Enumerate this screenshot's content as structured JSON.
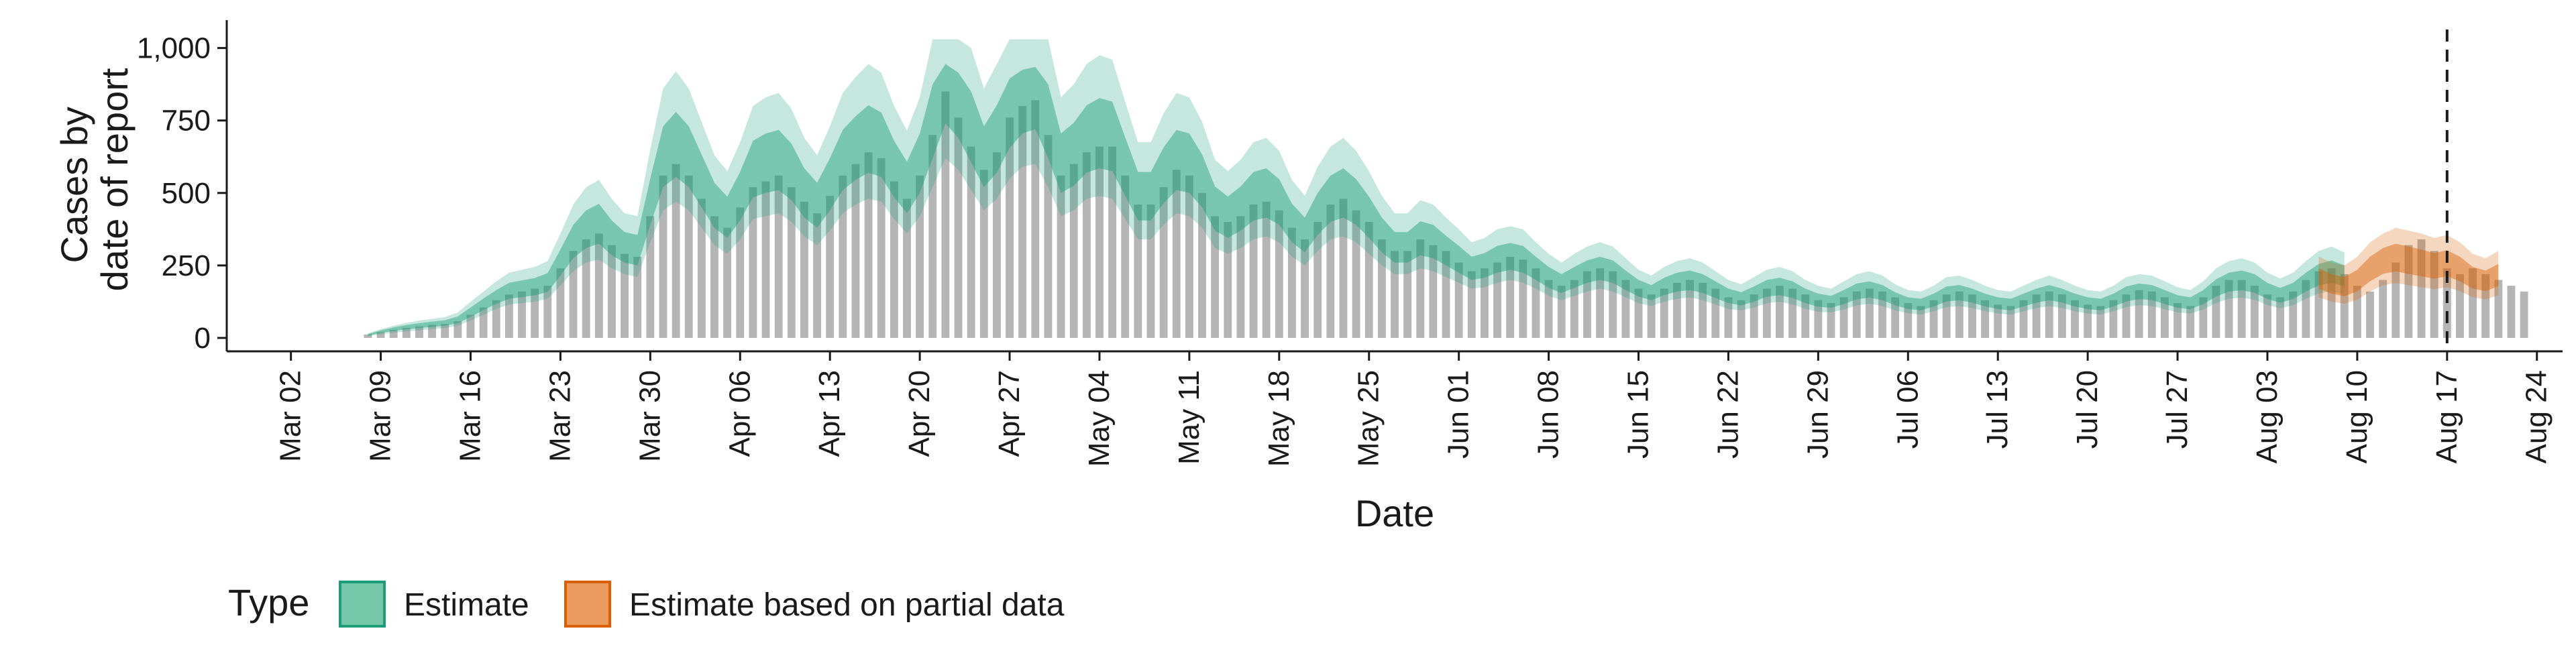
{
  "chart_data": {
    "type": "bar",
    "title": "",
    "xlabel": "Date",
    "ylabel_lines": [
      "Cases by",
      "date of report"
    ],
    "ylim": [
      0,
      1050
    ],
    "yticks": [
      0,
      250,
      500,
      750,
      1000
    ],
    "ytick_labels": [
      "0",
      "250",
      "500",
      "750",
      "1,000"
    ],
    "x_range": [
      "2020-02-26",
      "2020-08-26"
    ],
    "xticks": [
      "2020-03-02",
      "2020-03-09",
      "2020-03-16",
      "2020-03-23",
      "2020-03-30",
      "2020-04-06",
      "2020-04-13",
      "2020-04-20",
      "2020-04-27",
      "2020-05-04",
      "2020-05-11",
      "2020-05-18",
      "2020-05-25",
      "2020-06-01",
      "2020-06-08",
      "2020-06-15",
      "2020-06-22",
      "2020-06-29",
      "2020-07-06",
      "2020-07-13",
      "2020-07-20",
      "2020-07-27",
      "2020-08-03",
      "2020-08-10",
      "2020-08-17",
      "2020-08-24"
    ],
    "xtick_labels": [
      "Mar 02",
      "Mar 09",
      "Mar 16",
      "Mar 23",
      "Mar 30",
      "Apr 06",
      "Apr 13",
      "Apr 20",
      "Apr 27",
      "May 04",
      "May 11",
      "May 18",
      "May 25",
      "Jun 01",
      "Jun 08",
      "Jun 15",
      "Jun 22",
      "Jun 29",
      "Jul 06",
      "Jul 13",
      "Jul 20",
      "Jul 27",
      "Aug 03",
      "Aug 10",
      "Aug 17",
      "Aug 24"
    ],
    "vline_date": "2020-08-17",
    "grid": false,
    "legend": {
      "position": "bottom",
      "title": "Type",
      "entries": [
        {
          "label": "Estimate",
          "fill": "#74c7a8",
          "stroke": "#1b9e77"
        },
        {
          "label": "Estimate based on partial data",
          "fill": "#eb9b5e",
          "stroke": "#d95f02"
        }
      ]
    },
    "colors": {
      "bars": "#b5b5b5",
      "estimate_band": "#1b9e77",
      "partial_band": "#d95f02",
      "vline": "#1a1a1a"
    },
    "reported_cases": {
      "start_date": "2020-03-08",
      "values": [
        12,
        20,
        28,
        35,
        40,
        45,
        48,
        58,
        80,
        105,
        130,
        150,
        160,
        170,
        180,
        240,
        300,
        340,
        360,
        320,
        290,
        280,
        420,
        560,
        600,
        560,
        480,
        420,
        380,
        450,
        520,
        540,
        560,
        520,
        470,
        430,
        490,
        560,
        600,
        640,
        620,
        540,
        480,
        560,
        700,
        850,
        760,
        660,
        580,
        640,
        760,
        800,
        820,
        700,
        560,
        600,
        640,
        660,
        660,
        560,
        460,
        460,
        520,
        580,
        560,
        500,
        420,
        400,
        420,
        460,
        470,
        440,
        380,
        340,
        400,
        460,
        480,
        440,
        400,
        340,
        300,
        300,
        340,
        320,
        300,
        260,
        230,
        240,
        260,
        280,
        270,
        240,
        200,
        180,
        200,
        230,
        240,
        230,
        200,
        170,
        150,
        170,
        190,
        200,
        190,
        170,
        140,
        130,
        150,
        170,
        180,
        170,
        150,
        130,
        120,
        140,
        160,
        170,
        160,
        140,
        120,
        110,
        130,
        150,
        160,
        150,
        130,
        115,
        110,
        130,
        150,
        160,
        150,
        130,
        115,
        110,
        130,
        150,
        165,
        160,
        140,
        120,
        110,
        140,
        180,
        200,
        200,
        180,
        150,
        140,
        160,
        200,
        230,
        240,
        220,
        180,
        160,
        200,
        260,
        320,
        340,
        300,
        240,
        220,
        240,
        220,
        200,
        180,
        160
      ]
    },
    "estimate": {
      "start_date": "2020-03-08",
      "median": [
        10,
        22,
        30,
        37,
        42,
        46,
        50,
        60,
        85,
        112,
        135,
        155,
        162,
        168,
        182,
        250,
        320,
        360,
        380,
        330,
        300,
        290,
        450,
        600,
        640,
        600,
        520,
        440,
        400,
        470,
        560,
        580,
        590,
        550,
        480,
        440,
        510,
        590,
        630,
        660,
        640,
        560,
        500,
        580,
        720,
        860,
        800,
        700,
        600,
        660,
        760,
        820,
        840,
        720,
        580,
        610,
        660,
        680,
        670,
        570,
        470,
        470,
        540,
        590,
        580,
        520,
        430,
        400,
        430,
        470,
        480,
        450,
        380,
        340,
        410,
        460,
        480,
        450,
        400,
        340,
        300,
        300,
        330,
        320,
        290,
        260,
        230,
        240,
        260,
        270,
        260,
        230,
        200,
        180,
        200,
        220,
        230,
        220,
        190,
        165,
        150,
        170,
        185,
        190,
        180,
        160,
        140,
        130,
        145,
        165,
        170,
        160,
        140,
        125,
        120,
        135,
        155,
        160,
        150,
        130,
        115,
        110,
        125,
        145,
        150,
        140,
        125,
        115,
        110,
        125,
        140,
        150,
        140,
        125,
        115,
        110,
        125,
        145,
        155,
        150,
        135,
        120,
        115,
        135,
        165,
        185,
        190,
        180,
        155,
        140,
        155,
        185,
        210,
        220,
        205
      ],
      "lower": [
        6,
        12,
        18,
        22,
        26,
        30,
        34,
        42,
        60,
        80,
        100,
        115,
        120,
        125,
        135,
        180,
        230,
        260,
        270,
        240,
        220,
        210,
        330,
        440,
        470,
        440,
        380,
        320,
        290,
        340,
        410,
        420,
        430,
        400,
        350,
        320,
        370,
        430,
        460,
        480,
        470,
        410,
        360,
        420,
        520,
        620,
        580,
        510,
        440,
        480,
        550,
        590,
        600,
        520,
        420,
        440,
        480,
        490,
        480,
        410,
        340,
        340,
        390,
        430,
        420,
        380,
        310,
        290,
        310,
        340,
        350,
        330,
        280,
        250,
        300,
        340,
        350,
        330,
        290,
        250,
        220,
        220,
        240,
        230,
        210,
        190,
        170,
        175,
        190,
        200,
        190,
        170,
        145,
        130,
        145,
        160,
        170,
        160,
        140,
        120,
        110,
        125,
        135,
        140,
        130,
        115,
        100,
        95,
        105,
        120,
        125,
        115,
        100,
        90,
        88,
        98,
        112,
        118,
        110,
        95,
        85,
        80,
        92,
        106,
        110,
        103,
        92,
        84,
        80,
        92,
        103,
        110,
        103,
        92,
        84,
        80,
        92,
        106,
        113,
        110,
        99,
        88,
        84,
        98,
        120,
        135,
        139,
        131,
        113,
        102,
        113,
        135,
        153,
        161,
        150
      ],
      "upper": [
        16,
        30,
        42,
        52,
        60,
        66,
        72,
        88,
        125,
        160,
        195,
        225,
        235,
        245,
        265,
        360,
        460,
        520,
        545,
        480,
        430,
        420,
        650,
        860,
        920,
        860,
        745,
        630,
        575,
        675,
        800,
        830,
        845,
        790,
        690,
        630,
        730,
        845,
        900,
        945,
        915,
        800,
        715,
        830,
        1030,
        1030,
        1030,
        1000,
        860,
        945,
        1030,
        1030,
        1030,
        1030,
        830,
        875,
        945,
        975,
        960,
        815,
        675,
        675,
        775,
        845,
        830,
        745,
        615,
        575,
        615,
        675,
        690,
        645,
        545,
        490,
        590,
        660,
        690,
        645,
        575,
        490,
        430,
        430,
        475,
        460,
        415,
        375,
        330,
        345,
        375,
        385,
        375,
        330,
        290,
        260,
        290,
        315,
        330,
        315,
        275,
        235,
        215,
        245,
        265,
        275,
        260,
        230,
        200,
        185,
        210,
        235,
        245,
        230,
        200,
        180,
        170,
        195,
        220,
        230,
        215,
        185,
        165,
        160,
        180,
        210,
        215,
        200,
        180,
        165,
        160,
        180,
        200,
        215,
        200,
        180,
        165,
        160,
        180,
        210,
        220,
        215,
        195,
        175,
        165,
        195,
        240,
        265,
        275,
        260,
        225,
        205,
        225,
        265,
        300,
        315,
        295
      ]
    },
    "partial_estimate": {
      "start_date": "2020-08-07",
      "median": [
        200,
        180,
        170,
        190,
        230,
        260,
        270,
        260,
        250,
        240,
        250,
        230,
        200,
        190,
        210
      ],
      "lower": [
        140,
        125,
        118,
        132,
        160,
        182,
        189,
        182,
        175,
        168,
        175,
        161,
        140,
        133,
        147
      ],
      "upper": [
        280,
        260,
        250,
        280,
        330,
        360,
        380,
        370,
        360,
        345,
        355,
        330,
        290,
        275,
        300
      ]
    }
  }
}
